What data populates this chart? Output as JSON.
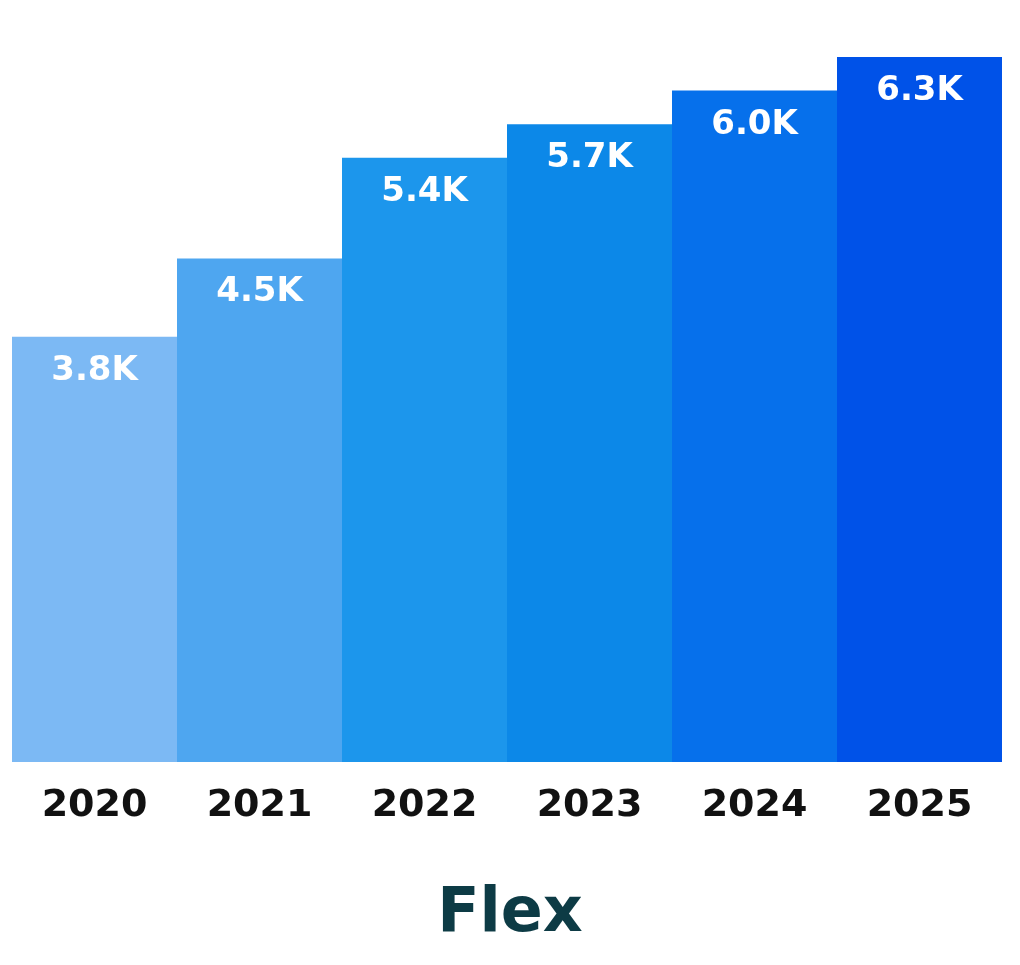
{
  "chart_data": {
    "type": "bar",
    "title": "Flex",
    "categories": [
      "2020",
      "2021",
      "2022",
      "2023",
      "2024",
      "2025"
    ],
    "values": [
      3800,
      4500,
      5400,
      5700,
      6000,
      6300
    ],
    "value_labels": [
      "3.8K",
      "4.5K",
      "5.4K",
      "5.7K",
      "6.0K",
      "6.3K"
    ],
    "colors": [
      "#7cb9f4",
      "#4ea6f0",
      "#1c96ec",
      "#0c88e8",
      "#0670eb",
      "#0052e8"
    ]
  }
}
